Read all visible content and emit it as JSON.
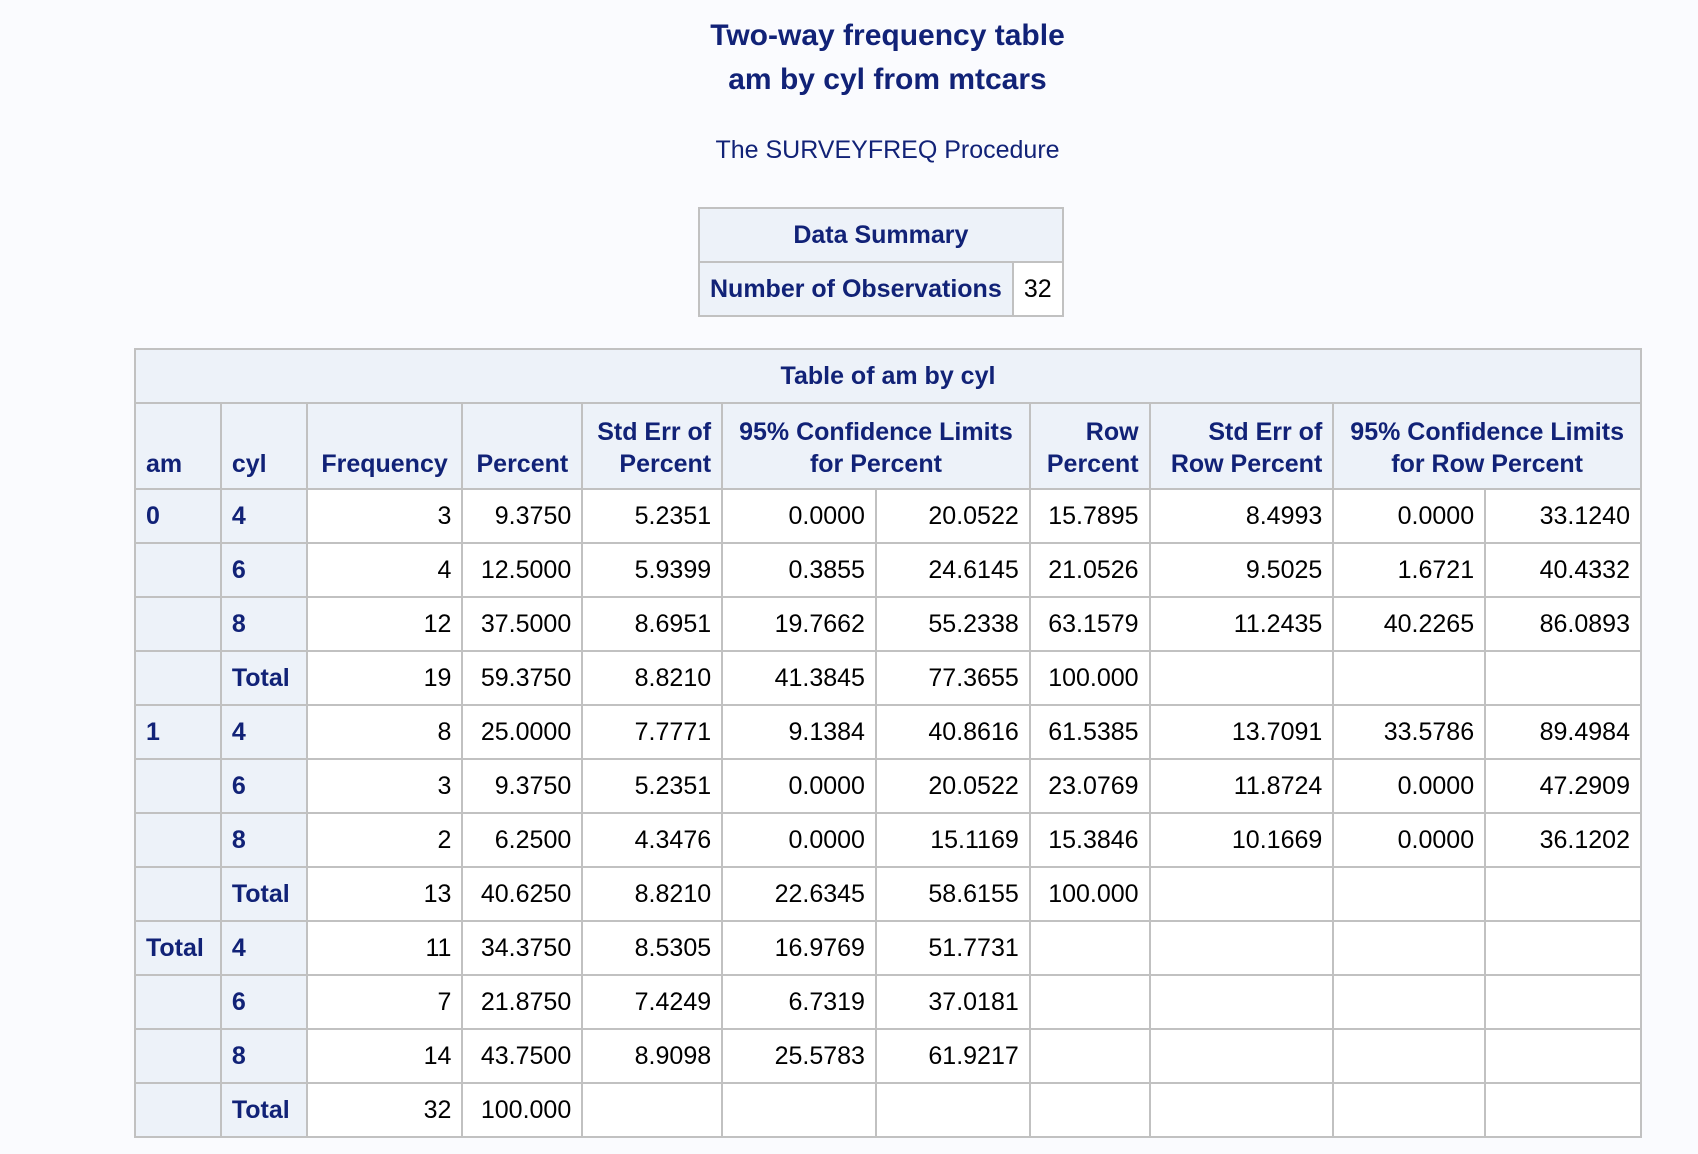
{
  "titles": {
    "line1": "Two-way frequency table",
    "line2": "am by cyl from mtcars",
    "procedure": "The SURVEYFREQ Procedure"
  },
  "data_summary": {
    "caption": "Data Summary",
    "row_label": "Number of Observations",
    "value": "32"
  },
  "main_table": {
    "caption": "Table of am by cyl",
    "headers": {
      "am": "am",
      "cyl": "cyl",
      "frequency": "Frequency",
      "percent": "Percent",
      "std_err_percent_1": "Std Err of",
      "std_err_percent_2": "Percent",
      "cl_percent_1": "95% Confidence Limits",
      "cl_percent_2": "for Percent",
      "row_percent_1": "Row",
      "row_percent_2": "Percent",
      "std_err_row_1": "Std Err of",
      "std_err_row_2": "Row Percent",
      "cl_row_1": "95% Confidence Limits",
      "cl_row_2": "for Row Percent"
    },
    "rows": [
      {
        "am": "0",
        "cyl": "4",
        "freq": "3",
        "pct": "9.3750",
        "se": "5.2351",
        "lcl": "0.0000",
        "ucl": "20.0522",
        "rowpct": "15.7895",
        "rowse": "8.4993",
        "rowlcl": "0.0000",
        "rowucl": "33.1240"
      },
      {
        "am": "",
        "cyl": "6",
        "freq": "4",
        "pct": "12.5000",
        "se": "5.9399",
        "lcl": "0.3855",
        "ucl": "24.6145",
        "rowpct": "21.0526",
        "rowse": "9.5025",
        "rowlcl": "1.6721",
        "rowucl": "40.4332"
      },
      {
        "am": "",
        "cyl": "8",
        "freq": "12",
        "pct": "37.5000",
        "se": "8.6951",
        "lcl": "19.7662",
        "ucl": "55.2338",
        "rowpct": "63.1579",
        "rowse": "11.2435",
        "rowlcl": "40.2265",
        "rowucl": "86.0893"
      },
      {
        "am": "",
        "cyl": "Total",
        "freq": "19",
        "pct": "59.3750",
        "se": "8.8210",
        "lcl": "41.3845",
        "ucl": "77.3655",
        "rowpct": "100.000",
        "rowse": "",
        "rowlcl": "",
        "rowucl": ""
      },
      {
        "am": "1",
        "cyl": "4",
        "freq": "8",
        "pct": "25.0000",
        "se": "7.7771",
        "lcl": "9.1384",
        "ucl": "40.8616",
        "rowpct": "61.5385",
        "rowse": "13.7091",
        "rowlcl": "33.5786",
        "rowucl": "89.4984"
      },
      {
        "am": "",
        "cyl": "6",
        "freq": "3",
        "pct": "9.3750",
        "se": "5.2351",
        "lcl": "0.0000",
        "ucl": "20.0522",
        "rowpct": "23.0769",
        "rowse": "11.8724",
        "rowlcl": "0.0000",
        "rowucl": "47.2909"
      },
      {
        "am": "",
        "cyl": "8",
        "freq": "2",
        "pct": "6.2500",
        "se": "4.3476",
        "lcl": "0.0000",
        "ucl": "15.1169",
        "rowpct": "15.3846",
        "rowse": "10.1669",
        "rowlcl": "0.0000",
        "rowucl": "36.1202"
      },
      {
        "am": "",
        "cyl": "Total",
        "freq": "13",
        "pct": "40.6250",
        "se": "8.8210",
        "lcl": "22.6345",
        "ucl": "58.6155",
        "rowpct": "100.000",
        "rowse": "",
        "rowlcl": "",
        "rowucl": ""
      },
      {
        "am": "Total",
        "cyl": "4",
        "freq": "11",
        "pct": "34.3750",
        "se": "8.5305",
        "lcl": "16.9769",
        "ucl": "51.7731",
        "rowpct": "",
        "rowse": "",
        "rowlcl": "",
        "rowucl": ""
      },
      {
        "am": "",
        "cyl": "6",
        "freq": "7",
        "pct": "21.8750",
        "se": "7.4249",
        "lcl": "6.7319",
        "ucl": "37.0181",
        "rowpct": "",
        "rowse": "",
        "rowlcl": "",
        "rowucl": ""
      },
      {
        "am": "",
        "cyl": "8",
        "freq": "14",
        "pct": "43.7500",
        "se": "8.9098",
        "lcl": "25.5783",
        "ucl": "61.9217",
        "rowpct": "",
        "rowse": "",
        "rowlcl": "",
        "rowucl": ""
      },
      {
        "am": "",
        "cyl": "Total",
        "freq": "32",
        "pct": "100.000",
        "se": "",
        "lcl": "",
        "ucl": "",
        "rowpct": "",
        "rowse": "",
        "rowlcl": "",
        "rowucl": ""
      }
    ]
  }
}
